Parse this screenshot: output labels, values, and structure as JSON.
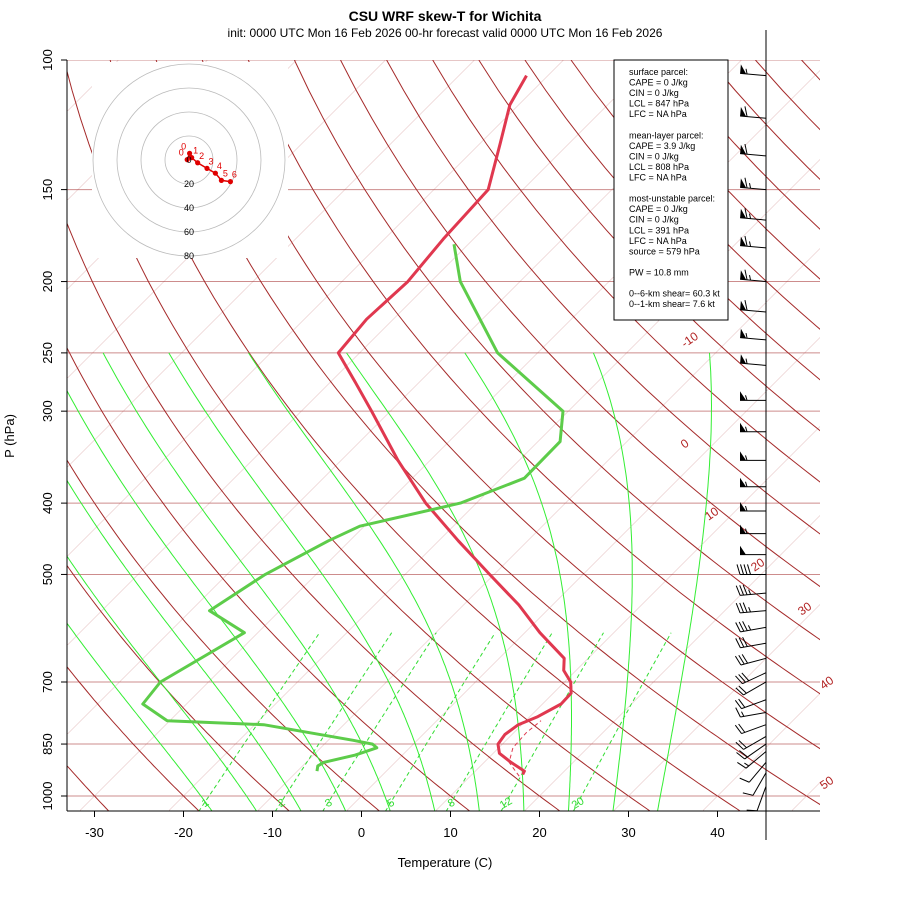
{
  "chart_data": {
    "type": "line",
    "title": "CSU WRF skew-T for Wichita",
    "subtitle": "init: 0000 UTC Mon 16 Feb 2026    00-hr forecast valid 0000 UTC Mon 16 Feb 2026",
    "xlabel": "Temperature (C)",
    "ylabel": "P (hPa)",
    "xlim": [
      -33,
      51
    ],
    "ylim": [
      1000,
      100
    ],
    "y_scale": "log",
    "x_ticks": [
      "-30",
      "-20",
      "-10",
      "0",
      "10",
      "20",
      "30",
      "40"
    ],
    "x_tick_values": [
      -30,
      -20,
      -10,
      0,
      10,
      20,
      30,
      40
    ],
    "y_ticks": [
      "100",
      "150",
      "200",
      "250",
      "300",
      "400",
      "500",
      "700",
      "850",
      "1000"
    ],
    "y_tick_values": [
      100,
      150,
      200,
      250,
      300,
      400,
      500,
      700,
      850,
      1000
    ],
    "isotherm_labels": [
      {
        "text": "-10",
        "t": -10
      },
      {
        "text": "0",
        "t": 0
      },
      {
        "text": "10",
        "t": 10
      },
      {
        "text": "20",
        "t": 20
      },
      {
        "text": "30",
        "t": 30
      },
      {
        "text": "40",
        "t": 40
      },
      {
        "text": "50",
        "t": 50
      }
    ],
    "mixing_ratio_labels": [
      {
        "text": "1",
        "w": 1
      },
      {
        "text": "2",
        "w": 2
      },
      {
        "text": "3",
        "w": 3
      },
      {
        "text": "5",
        "w": 5
      },
      {
        "text": "8",
        "w": 8
      },
      {
        "text": "12",
        "w": 12
      },
      {
        "text": "20",
        "w": 20
      }
    ],
    "series": [
      {
        "name": "",
        "role": "temperature",
        "color": "#e0384f",
        "p": [
          935,
          925,
          900,
          875,
          850,
          825,
          800,
          780,
          750,
          725,
          700,
          675,
          650,
          600,
          550,
          500,
          450,
          400,
          350,
          300,
          275,
          250,
          225,
          200,
          175,
          150,
          130,
          115,
          105
        ],
        "t": [
          15.7,
          15.5,
          13.0,
          10.7,
          9.5,
          9.2,
          9.6,
          10.9,
          12.1,
          12.0,
          10.7,
          8.6,
          7.3,
          1.7,
          -3.8,
          -10.5,
          -17.8,
          -25.7,
          -33.6,
          -42.1,
          -47.0,
          -52.4,
          -53.0,
          -52.6,
          -53.4,
          -53.9,
          -57.7,
          -61.0,
          -62.4
        ]
      },
      {
        "name": "",
        "role": "dewpoint",
        "color": "#5dcc4a",
        "p": [
          925,
          910,
          900,
          880,
          860,
          850,
          840,
          800,
          790,
          750,
          700,
          600,
          560,
          500,
          450,
          430,
          400,
          370,
          330,
          300,
          250,
          200,
          178
        ],
        "td": [
          -7.8,
          -8.3,
          -8.0,
          -5.3,
          -3.7,
          -4.6,
          -7.2,
          -19.0,
          -30.3,
          -34.9,
          -35.4,
          -31.5,
          -37.9,
          -35.7,
          -32.4,
          -30.5,
          -21.8,
          -17.4,
          -17.5,
          -20.6,
          -34.5,
          -46.7,
          -51.6
        ]
      },
      {
        "name": "",
        "role": "parcel",
        "color": "#e0384f",
        "dashed": true,
        "p": [
          940,
          900,
          860,
          820,
          790
        ],
        "t": [
          15.5,
          12.8,
          11.6,
          11.4,
          11.7
        ]
      }
    ],
    "wind_barbs": {
      "p": [
        970,
        930,
        900,
        870,
        850,
        830,
        800,
        770,
        740,
        700,
        680,
        650,
        620,
        590,
        560,
        530,
        500,
        470,
        440,
        410,
        380,
        350,
        320,
        290,
        260,
        240,
        220,
        200,
        180,
        165,
        150,
        135,
        120,
        105
      ],
      "speed_kt": [
        8,
        10,
        12,
        15,
        18,
        20,
        20,
        15,
        20,
        20,
        30,
        30,
        30,
        35,
        35,
        35,
        40,
        50,
        55,
        55,
        55,
        55,
        55,
        55,
        55,
        55,
        60,
        65,
        65,
        65,
        65,
        60,
        60,
        55
      ],
      "dir_deg": [
        200,
        210,
        220,
        230,
        235,
        240,
        250,
        260,
        250,
        240,
        245,
        255,
        260,
        260,
        265,
        265,
        270,
        270,
        270,
        270,
        270,
        270,
        270,
        270,
        275,
        275,
        275,
        275,
        275,
        275,
        275,
        275,
        275,
        275
      ]
    },
    "hodograph": {
      "ring_labels": [
        "20",
        "40",
        "60",
        "80"
      ],
      "ring_values": [
        20,
        40,
        60,
        80
      ],
      "points": [
        {
          "label": "0",
          "u": 0.5,
          "v": 5.5
        },
        {
          "label": "0",
          "u": -1.5,
          "v": 0.3
        },
        {
          "label": "1",
          "u": 2.2,
          "v": 2.0
        },
        {
          "label": "2",
          "u": 7.2,
          "v": -2.3
        },
        {
          "label": "3",
          "u": 15.0,
          "v": -7.0
        },
        {
          "label": "4",
          "u": 22.0,
          "v": -11.0
        },
        {
          "label": "5",
          "u": 27.0,
          "v": -17.0
        },
        {
          "label": "6",
          "u": 34.5,
          "v": -18.0
        }
      ]
    },
    "info_box": [
      "surface parcel:",
      "CAPE = 0 J/kg",
      "CIN = 0 J/kg",
      "LCL = 847 hPa",
      "LFC = NA hPa",
      "",
      "mean-layer parcel:",
      "CAPE = 3.9 J/kg",
      "CIN = 0 J/kg",
      "LCL = 808 hPa",
      "LFC = NA hPa",
      "",
      "most-unstable parcel:",
      "CAPE = 0 J/kg",
      "CIN = 0 J/kg",
      "LCL = 391 hPa",
      "LFC = NA hPa",
      "source = 579 hPa",
      "",
      "PW =  10.8 mm",
      "",
      "0--6-km shear= 60.3 kt",
      "0--1-km shear= 7.6 kt"
    ]
  },
  "colors": {
    "isotherm": "#a52a2a",
    "isobar": "#cd8c8c",
    "dry_adiabat": "#a52a2a",
    "moist_adiabat": "#33ee33",
    "mixing_ratio": "#33dd33",
    "temperature": "#e0384f",
    "dewpoint": "#5dcc4a",
    "hodograph": "#e00000"
  }
}
